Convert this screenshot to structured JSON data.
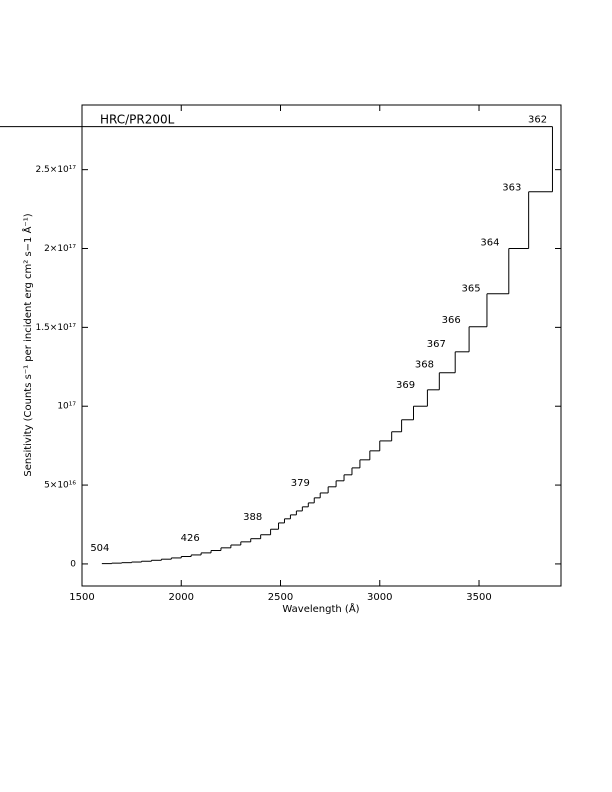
{
  "chart_data": {
    "type": "step",
    "title": "HRC/PR200L",
    "xlabel": "Wavelength (Å)",
    "ylabel": "Sensitivity (Counts s⁻¹ per incident erg cm² s−1 Å⁻¹)",
    "xlim": [
      1500,
      3913
    ],
    "ylim": [
      -1.4e+16,
      2.91e+17
    ],
    "xticks": [
      1500,
      2000,
      2500,
      3000,
      3500
    ],
    "yticks": [
      0,
      {
        "value": 5e+16,
        "label": "5×10¹⁶"
      },
      {
        "value": 1e+17,
        "label": "10¹⁷"
      },
      {
        "value": 1.5e+17,
        "label": "1.5×10¹⁷"
      },
      {
        "value": 2e+17,
        "label": "2×10¹⁷"
      },
      {
        "value": 2.5e+17,
        "label": "2.5×10¹⁷"
      }
    ],
    "color": "#000000",
    "bins": [
      1600,
      1650,
      1700,
      1750,
      1800,
      1850,
      1900,
      1950,
      2000,
      2050,
      2100,
      2150,
      2200,
      2250,
      2300,
      2350,
      2400,
      2450,
      2490,
      2520,
      2550,
      2580,
      2610,
      2640,
      2670,
      2700,
      2740,
      2780,
      2820,
      2860,
      2900,
      2950,
      3000,
      3060,
      3110,
      3170,
      3240,
      3300,
      3380,
      3450,
      3540,
      3650,
      3750,
      3870
    ],
    "values": [
      200000000000000.0,
      500000000000000.0,
      800000000000000.0,
      1200000000000000.0,
      1700000000000000.0,
      2300000000000000.0,
      3000000000000000.0,
      3800000000000000.0,
      4700000000000000.0,
      5700000000000000.0,
      7000000000000000.0,
      8500000000000000.0,
      1.02e+16,
      1.2e+16,
      1.4e+16,
      1.6e+16,
      1.85e+16,
      2.2e+16,
      2.6e+16,
      2.86e+16,
      3.11e+16,
      3.36e+16,
      3.62e+16,
      3.87e+16,
      4.19e+16,
      4.5e+16,
      4.89e+16,
      5.27e+16,
      5.65e+16,
      6.09e+16,
      6.6e+16,
      7.17e+16,
      7.8e+16,
      8.38e+16,
      9.14e+16,
      1e+17,
      1.104e+17,
      1.212e+17,
      1.345e+17,
      1.504e+17,
      1.713e+17,
      2e+17,
      2.36e+17,
      2.773e+17
    ],
    "annotations": [
      {
        "text": 504,
        "x": 1590,
        "y": 1e+16
      },
      {
        "text": 426,
        "x": 2045,
        "y": 1.65e+16
      },
      {
        "text": 388,
        "x": 2360,
        "y": 2.98e+16
      },
      {
        "text": 379,
        "x": 2600,
        "y": 5.14e+16
      },
      {
        "text": 369,
        "x": 3130,
        "y": 1.136e+17
      },
      {
        "text": 368,
        "x": 3225,
        "y": 1.263e+17
      },
      {
        "text": 367,
        "x": 3285,
        "y": 1.396e+17
      },
      {
        "text": 366,
        "x": 3360,
        "y": 1.548e+17
      },
      {
        "text": 365,
        "x": 3460,
        "y": 1.745e+17
      },
      {
        "text": 364,
        "x": 3555,
        "y": 2.037e+17
      },
      {
        "text": 363,
        "x": 3665,
        "y": 2.386e+17
      },
      {
        "text": 362,
        "x": 3795,
        "y": 2.818e+17
      }
    ]
  }
}
